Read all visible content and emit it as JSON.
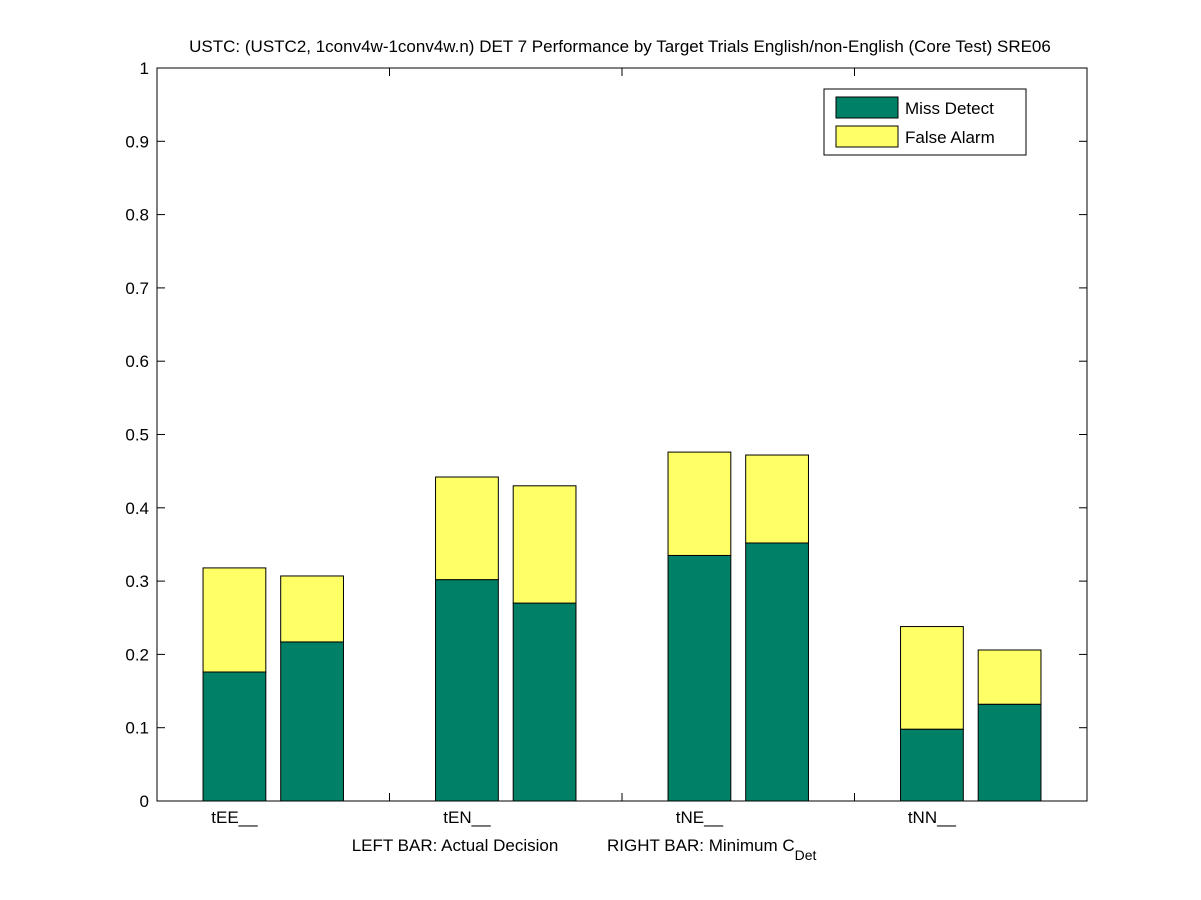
{
  "chart_data": {
    "type": "bar",
    "title": "USTC: (USTC2, 1conv4w-1conv4w.n) DET 7 Performance by Target Trials English/non-English (Core Test) SRE06",
    "xlabel_left": "LEFT BAR: Actual Decision",
    "xlabel_right_main": "RIGHT BAR: Minimum C",
    "xlabel_right_sub": "Det",
    "categories": [
      "tEE__",
      "tEN__",
      "tNE__",
      "tNN__"
    ],
    "bar_groups": [
      "Actual Decision",
      "Minimum C_Det"
    ],
    "series": [
      {
        "name": "Miss Detect",
        "color": "#008066",
        "values": [
          [
            0.176,
            0.217
          ],
          [
            0.302,
            0.27
          ],
          [
            0.335,
            0.352
          ],
          [
            0.098,
            0.132
          ]
        ]
      },
      {
        "name": "False Alarm",
        "color": "#ffff66",
        "values": [
          [
            0.142,
            0.09
          ],
          [
            0.14,
            0.16
          ],
          [
            0.141,
            0.12
          ],
          [
            0.14,
            0.074
          ]
        ]
      }
    ],
    "totals": [
      [
        0.318,
        0.307
      ],
      [
        0.442,
        0.43
      ],
      [
        0.476,
        0.472
      ],
      [
        0.238,
        0.206
      ]
    ],
    "ylim": [
      0,
      1
    ],
    "yticks": [
      "0",
      "0.1",
      "0.2",
      "0.3",
      "0.4",
      "0.5",
      "0.6",
      "0.7",
      "0.8",
      "0.9",
      "1"
    ],
    "grid": false,
    "legend_position": "top-right",
    "legend": [
      "Miss Detect",
      "False Alarm"
    ]
  }
}
